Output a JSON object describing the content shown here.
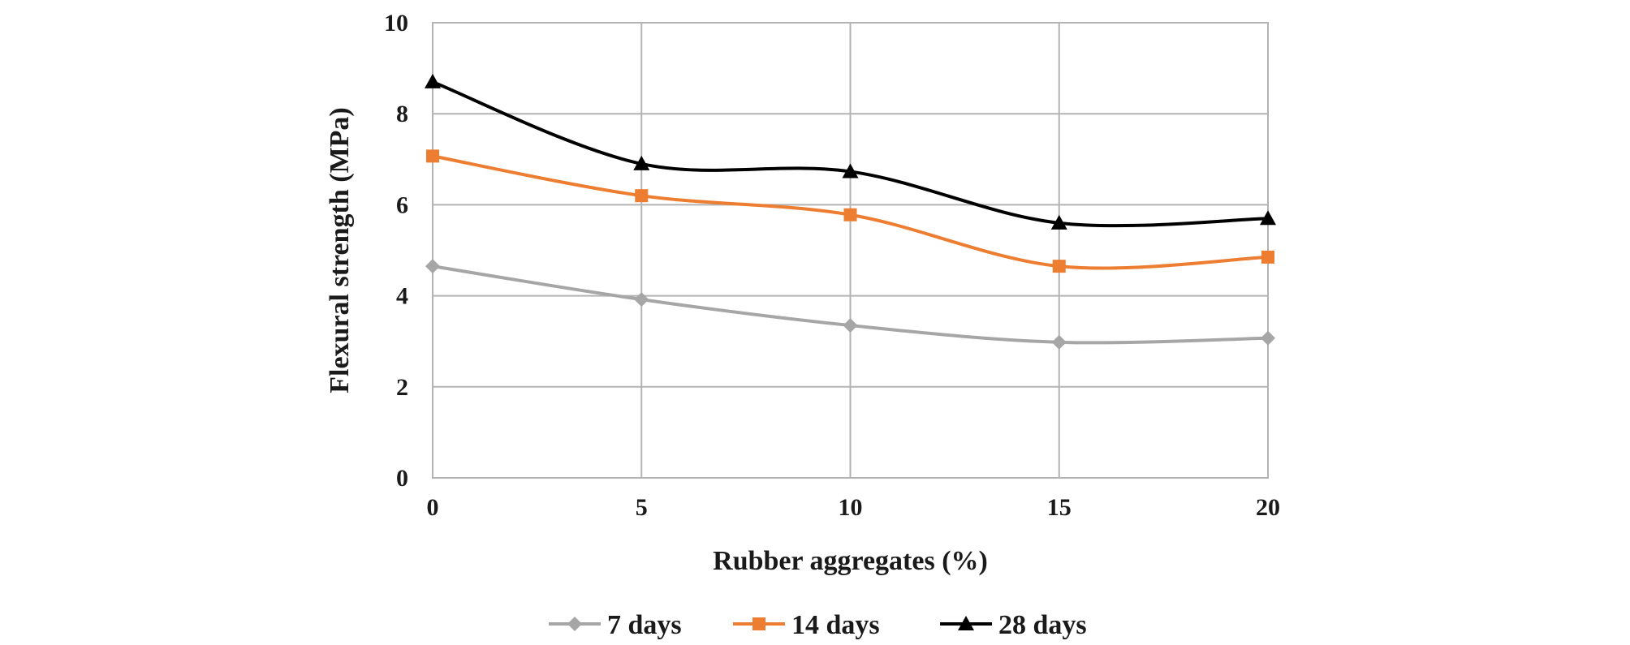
{
  "chart_data": {
    "type": "line",
    "title": "",
    "xlabel": "Rubber aggregates (%)",
    "ylabel": "Flexural strength (MPa)",
    "x": [
      0,
      5,
      10,
      15,
      20
    ],
    "x_ticks": [
      "0",
      "5",
      "10",
      "15",
      "20"
    ],
    "y_ticks": [
      "0",
      "2",
      "4",
      "6",
      "8",
      "10"
    ],
    "xlim": [
      0,
      20
    ],
    "ylim": [
      0,
      10
    ],
    "grid": true,
    "legend_position": "bottom",
    "series": [
      {
        "name": "7 days",
        "values": [
          4.65,
          3.92,
          3.35,
          2.98,
          3.07
        ],
        "color": "#a6a6a6",
        "marker": "diamond"
      },
      {
        "name": "14 days",
        "values": [
          7.07,
          6.2,
          5.78,
          4.65,
          4.85
        ],
        "color": "#ed7d31",
        "marker": "square"
      },
      {
        "name": "28 days",
        "values": [
          8.7,
          6.9,
          6.73,
          5.6,
          5.7
        ],
        "color": "#000000",
        "marker": "triangle"
      }
    ]
  }
}
